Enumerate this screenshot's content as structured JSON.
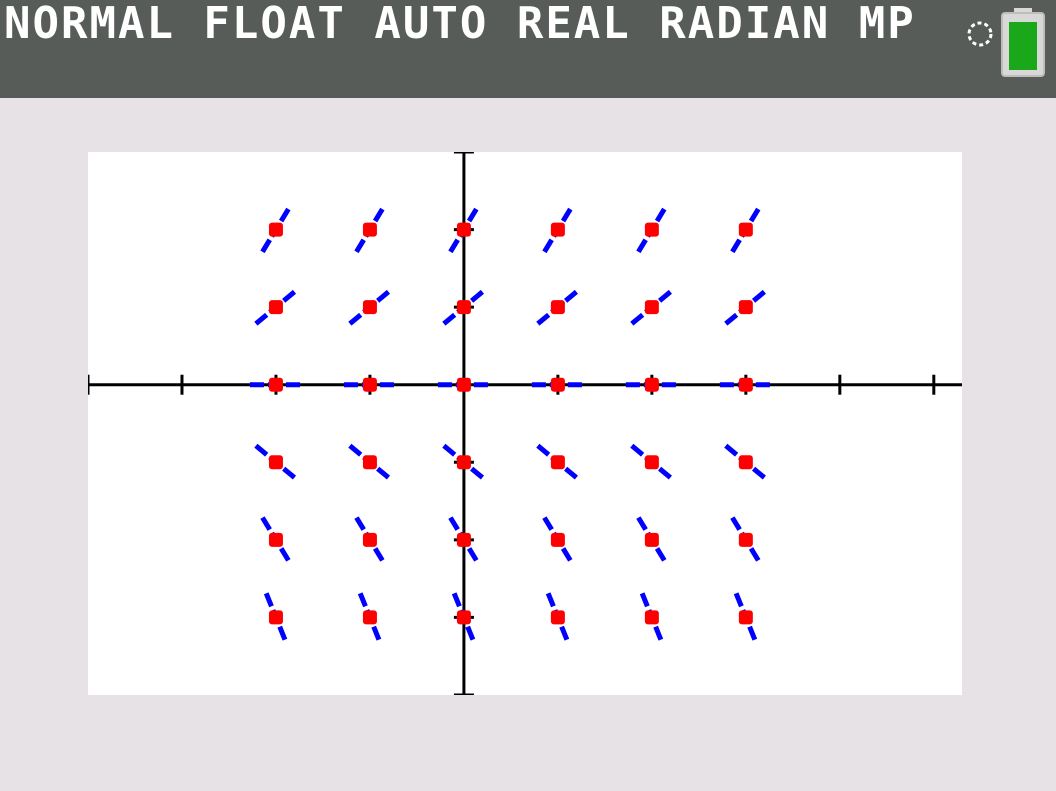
{
  "status_bar": {
    "mode_text": "NORMAL FLOAT AUTO REAL RADIAN MP",
    "busy_icon": "busy-indicator-icon",
    "battery_icon": "battery-icon",
    "battery_level": 1.0
  },
  "colors": {
    "status_bg": "#575c59",
    "background": "#e6e2e6",
    "screen_bg": "#ffffff",
    "axes": "#000000",
    "slope_segment": "#0000ff",
    "point": "#ff0000",
    "battery_fill": "#1aa81a"
  },
  "chart_data": {
    "type": "scatter",
    "title": "",
    "xlabel": "",
    "ylabel": "",
    "xlim": [
      -4,
      5.3
    ],
    "ylim": [
      -4,
      3
    ],
    "xscale_tick": 1,
    "yscale_tick": 1,
    "grid": false,
    "slope_field": {
      "x": [
        -2,
        -1,
        0,
        1,
        2,
        3
      ],
      "y": [
        2,
        1,
        0,
        -1,
        -2,
        -3
      ],
      "slopes": [
        [
          2,
          2,
          2,
          2,
          2,
          2
        ],
        [
          1,
          1,
          1,
          1,
          1,
          1
        ],
        [
          0,
          0,
          0,
          0,
          0,
          0
        ],
        [
          -1,
          -1,
          -1,
          -1,
          -1,
          -1
        ],
        [
          -2,
          -2,
          -2,
          -2,
          -2,
          -2
        ],
        [
          -3,
          -3,
          -3,
          -3,
          -3,
          -3
        ]
      ]
    },
    "series": [
      {
        "marker": "point",
        "points": [
          [
            -2,
            2
          ],
          [
            -1,
            2
          ],
          [
            0,
            2
          ],
          [
            1,
            2
          ],
          [
            2,
            2
          ],
          [
            3,
            2
          ],
          [
            -2,
            1
          ],
          [
            -1,
            1
          ],
          [
            0,
            1
          ],
          [
            1,
            1
          ],
          [
            2,
            1
          ],
          [
            3,
            1
          ],
          [
            -2,
            0
          ],
          [
            -1,
            0
          ],
          [
            0,
            0
          ],
          [
            1,
            0
          ],
          [
            2,
            0
          ],
          [
            3,
            0
          ],
          [
            -2,
            -1
          ],
          [
            -1,
            -1
          ],
          [
            0,
            -1
          ],
          [
            1,
            -1
          ],
          [
            2,
            -1
          ],
          [
            3,
            -1
          ],
          [
            -2,
            -2
          ],
          [
            -1,
            -2
          ],
          [
            0,
            -2
          ],
          [
            1,
            -2
          ],
          [
            2,
            -2
          ],
          [
            3,
            -2
          ],
          [
            -2,
            -3
          ],
          [
            -1,
            -3
          ],
          [
            0,
            -3
          ],
          [
            1,
            -3
          ],
          [
            2,
            -3
          ],
          [
            3,
            -3
          ]
        ]
      }
    ]
  }
}
